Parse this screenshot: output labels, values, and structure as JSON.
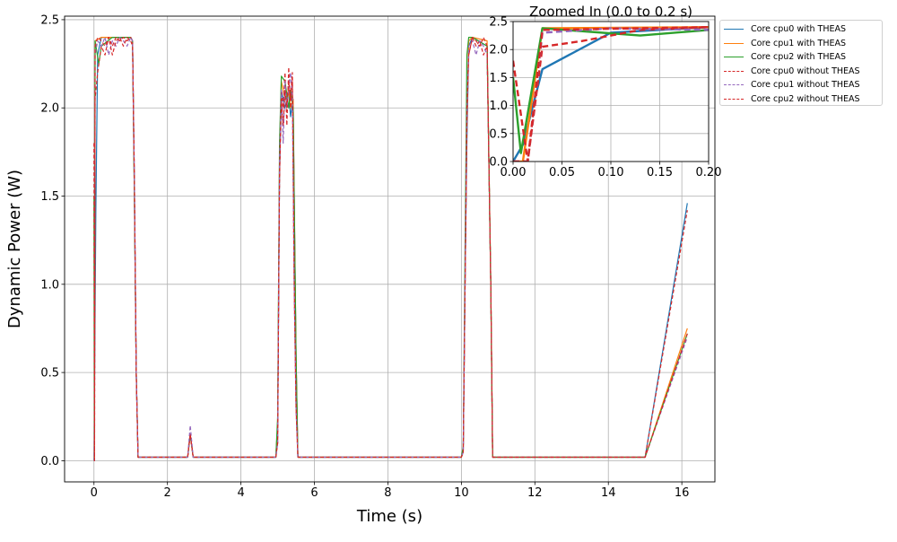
{
  "chart_data": [
    {
      "type": "line",
      "title": "",
      "xlabel": "Time (s)",
      "ylabel": "Dynamic Power (W)",
      "xlim": [
        -0.8,
        16.9
      ],
      "ylim": [
        -0.12,
        2.52
      ],
      "xticks": [
        0,
        2,
        4,
        6,
        8,
        10,
        12,
        14,
        16
      ],
      "yticks": [
        0.0,
        0.5,
        1.0,
        1.5,
        2.0,
        2.5
      ],
      "ytick_labels": [
        "0.0",
        "0.5",
        "1.0",
        "1.5",
        "2.0",
        "2.5"
      ],
      "grid": true,
      "legend_position": "outside-top-right",
      "series": [
        {
          "name": "Core cpu0 with THEAS",
          "color": "#1f77b4",
          "style": "solid",
          "x": [
            0.0,
            0.05,
            0.1,
            0.2,
            0.3,
            1.0,
            1.05,
            1.1,
            1.15,
            1.2,
            2.55,
            2.62,
            2.7,
            4.95,
            5.0,
            5.05,
            5.1,
            5.2,
            5.3,
            5.35,
            5.42,
            5.5,
            5.55,
            10.0,
            10.05,
            10.1,
            10.15,
            10.2,
            10.3,
            10.7,
            10.8,
            10.85,
            15.0,
            16.15
          ],
          "y": [
            0.0,
            1.4,
            2.3,
            2.4,
            2.4,
            2.4,
            2.38,
            1.5,
            0.5,
            0.02,
            0.02,
            0.15,
            0.02,
            0.02,
            0.2,
            1.6,
            2.1,
            2.0,
            2.1,
            1.95,
            2.05,
            0.6,
            0.02,
            0.02,
            0.05,
            1.0,
            1.8,
            2.35,
            2.4,
            2.35,
            1.0,
            0.02,
            0.02,
            1.46
          ]
        },
        {
          "name": "Core cpu1 with THEAS",
          "color": "#ff7f0e",
          "style": "solid",
          "x": [
            0.0,
            0.01,
            0.03,
            0.2,
            0.5,
            1.0,
            1.05,
            1.1,
            1.15,
            1.2,
            2.55,
            2.62,
            2.7,
            4.95,
            5.0,
            5.05,
            5.1,
            5.2,
            5.3,
            5.35,
            5.42,
            5.5,
            5.55,
            10.0,
            10.05,
            10.1,
            10.15,
            10.2,
            10.3,
            10.7,
            10.8,
            10.85,
            15.0,
            16.15
          ],
          "y": [
            0.0,
            0.0,
            2.38,
            2.4,
            2.4,
            2.4,
            2.38,
            1.5,
            0.5,
            0.02,
            0.02,
            0.15,
            0.02,
            0.02,
            0.2,
            1.7,
            2.15,
            2.05,
            2.1,
            2.0,
            2.05,
            0.6,
            0.02,
            0.02,
            0.05,
            1.0,
            1.9,
            2.38,
            2.4,
            2.38,
            1.0,
            0.02,
            0.02,
            0.75
          ]
        },
        {
          "name": "Core cpu2 with THEAS",
          "color": "#2ca02c",
          "style": "solid",
          "x": [
            0.0,
            0.01,
            0.03,
            0.13,
            0.2,
            0.5,
            1.0,
            1.05,
            1.1,
            1.15,
            1.2,
            2.55,
            2.62,
            2.7,
            4.95,
            5.0,
            5.05,
            5.1,
            5.2,
            5.3,
            5.35,
            5.42,
            5.5,
            5.55,
            10.0,
            10.05,
            10.1,
            10.15,
            10.2,
            10.3,
            10.7,
            10.8,
            10.85,
            15.0,
            16.15
          ],
          "y": [
            1.5,
            0.15,
            2.38,
            2.25,
            2.35,
            2.4,
            2.4,
            2.38,
            1.5,
            0.5,
            0.02,
            0.02,
            0.15,
            0.02,
            0.02,
            0.25,
            1.8,
            2.18,
            2.15,
            2.0,
            2.1,
            2.0,
            0.6,
            0.02,
            0.02,
            0.08,
            1.2,
            2.3,
            2.4,
            2.4,
            2.35,
            1.0,
            0.02,
            0.02,
            0.72
          ]
        },
        {
          "name": "Core cpu0 without THEAS",
          "color": "#d62728",
          "style": "dashed",
          "x": [
            0.0,
            0.015,
            0.03,
            0.1,
            0.2,
            0.3,
            0.4,
            0.5,
            0.6,
            0.7,
            0.8,
            0.9,
            1.0,
            1.05,
            1.1,
            1.15,
            1.2,
            2.55,
            2.62,
            2.7,
            4.95,
            5.0,
            5.05,
            5.1,
            5.15,
            5.2,
            5.25,
            5.3,
            5.35,
            5.4,
            5.45,
            5.5,
            5.55,
            10.0,
            10.05,
            10.1,
            10.15,
            10.2,
            10.3,
            10.4,
            10.5,
            10.6,
            10.7,
            10.8,
            10.85,
            15.0,
            16.15
          ],
          "y": [
            1.8,
            0.0,
            2.05,
            2.2,
            2.35,
            2.3,
            2.4,
            2.35,
            2.4,
            2.38,
            2.4,
            2.38,
            2.4,
            2.38,
            1.6,
            0.5,
            0.02,
            0.02,
            0.15,
            0.02,
            0.02,
            0.1,
            1.6,
            2.1,
            2.0,
            2.2,
            1.9,
            2.23,
            2.0,
            2.15,
            1.0,
            0.3,
            0.02,
            0.02,
            0.05,
            1.0,
            1.9,
            2.3,
            2.4,
            2.35,
            2.38,
            2.3,
            2.35,
            1.0,
            0.02,
            0.02,
            1.42
          ]
        },
        {
          "name": "Core cpu1 without THEAS",
          "color": "#9467bd",
          "style": "dashed",
          "x": [
            0.0,
            0.015,
            0.03,
            0.1,
            0.2,
            0.3,
            0.4,
            0.5,
            0.6,
            0.7,
            0.8,
            0.9,
            1.0,
            1.05,
            1.1,
            1.15,
            1.2,
            2.55,
            2.62,
            2.7,
            4.95,
            5.0,
            5.05,
            5.1,
            5.15,
            5.2,
            5.25,
            5.3,
            5.35,
            5.4,
            5.45,
            5.5,
            5.55,
            10.0,
            10.05,
            10.1,
            10.15,
            10.2,
            10.3,
            10.4,
            10.5,
            10.6,
            10.7,
            10.8,
            10.85,
            15.0,
            16.15
          ],
          "y": [
            0.0,
            0.0,
            2.3,
            2.38,
            2.35,
            2.4,
            2.3,
            2.38,
            2.35,
            2.4,
            2.38,
            2.35,
            2.4,
            2.38,
            1.6,
            0.5,
            0.02,
            0.02,
            0.2,
            0.02,
            0.02,
            0.1,
            1.7,
            2.1,
            1.8,
            2.15,
            2.0,
            2.1,
            2.2,
            2.05,
            1.0,
            0.3,
            0.02,
            0.02,
            0.05,
            1.0,
            1.95,
            2.35,
            2.38,
            2.3,
            2.38,
            2.35,
            2.3,
            1.0,
            0.02,
            0.02,
            0.7
          ]
        },
        {
          "name": "Core cpu2 without THEAS",
          "color": "#d62728",
          "style": "dashed",
          "x": [
            0.0,
            0.015,
            0.03,
            0.1,
            0.2,
            0.3,
            0.4,
            0.5,
            0.6,
            0.7,
            0.8,
            0.9,
            1.0,
            1.05,
            1.1,
            1.15,
            1.2,
            2.55,
            2.62,
            2.7,
            4.95,
            5.0,
            5.05,
            5.1,
            5.15,
            5.2,
            5.25,
            5.3,
            5.35,
            5.4,
            5.45,
            5.5,
            5.55,
            10.0,
            10.05,
            10.1,
            10.15,
            10.2,
            10.3,
            10.4,
            10.5,
            10.6,
            10.7,
            10.8,
            10.85,
            15.0,
            16.15
          ],
          "y": [
            0.0,
            0.0,
            2.35,
            2.4,
            2.38,
            2.35,
            2.4,
            2.3,
            2.38,
            2.4,
            2.35,
            2.4,
            2.38,
            2.35,
            1.6,
            0.5,
            0.02,
            0.02,
            0.15,
            0.02,
            0.02,
            0.1,
            1.6,
            2.05,
            1.9,
            2.1,
            2.0,
            2.15,
            2.05,
            2.2,
            1.0,
            0.3,
            0.02,
            0.02,
            0.05,
            1.0,
            2.0,
            2.3,
            2.4,
            2.38,
            2.35,
            2.4,
            2.35,
            1.0,
            0.02,
            0.02,
            0.72
          ]
        }
      ]
    },
    {
      "type": "line",
      "title": "Zoomed In (0.0 to 0.2 s)",
      "xlabel": "",
      "ylabel": "",
      "xlim": [
        0.0,
        0.2
      ],
      "ylim": [
        0.0,
        2.5
      ],
      "xticks": [
        0.0,
        0.05,
        0.1,
        0.15,
        0.2
      ],
      "xtick_labels": [
        "0.00",
        "0.05",
        "0.10",
        "0.15",
        "0.20"
      ],
      "yticks": [
        0.0,
        0.5,
        1.0,
        1.5,
        2.0,
        2.5
      ],
      "ytick_labels": [
        "0.0",
        "0.5",
        "1.0",
        "1.5",
        "2.0",
        "2.5"
      ],
      "grid": true,
      "series": [
        {
          "name": "Core cpu0 with THEAS",
          "color": "#1f77b4",
          "style": "solid",
          "x": [
            0.0,
            0.01,
            0.03,
            0.1,
            0.2
          ],
          "y": [
            0.0,
            0.3,
            1.65,
            2.3,
            2.4
          ]
        },
        {
          "name": "Core cpu1 with THEAS",
          "color": "#ff7f0e",
          "style": "solid",
          "x": [
            0.0,
            0.01,
            0.03,
            0.2
          ],
          "y": [
            0.0,
            0.0,
            2.38,
            2.4
          ]
        },
        {
          "name": "Core cpu2 with THEAS",
          "color": "#2ca02c",
          "style": "solid",
          "x": [
            0.0,
            0.008,
            0.03,
            0.13,
            0.2
          ],
          "y": [
            1.5,
            0.15,
            2.38,
            2.25,
            2.35
          ]
        },
        {
          "name": "Core cpu0 without THEAS",
          "color": "#d62728",
          "style": "dashed",
          "x": [
            0.0,
            0.015,
            0.03,
            0.07,
            0.13,
            0.2
          ],
          "y": [
            1.8,
            0.0,
            2.05,
            2.15,
            2.35,
            2.4
          ]
        },
        {
          "name": "Core cpu1 without THEAS",
          "color": "#9467bd",
          "style": "dashed",
          "x": [
            0.0,
            0.015,
            0.03,
            0.1,
            0.2
          ],
          "y": [
            0.0,
            0.0,
            2.3,
            2.38,
            2.35
          ]
        },
        {
          "name": "Core cpu2 without THEAS",
          "color": "#d62728",
          "style": "dashed",
          "x": [
            0.0,
            0.015,
            0.03,
            0.2
          ],
          "y": [
            0.0,
            0.0,
            2.35,
            2.4
          ]
        }
      ]
    }
  ]
}
